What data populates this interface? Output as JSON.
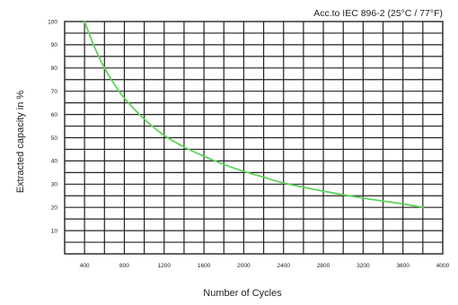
{
  "chart_data": {
    "type": "line",
    "title": "Acc.to IEC 896-2 (25°C / 77°F)",
    "xlabel": "Number of Cycles",
    "ylabel": "Extracted capacity in %",
    "xlim": [
      200,
      4000
    ],
    "ylim": [
      0,
      100
    ],
    "xticks": [
      400,
      800,
      1200,
      1600,
      2000,
      2400,
      2800,
      3200,
      3600,
      4000
    ],
    "xtick_labels": [
      "400",
      "800",
      "1200",
      "1600",
      "2000",
      "2400",
      "2800",
      "3200",
      "3600",
      "4000"
    ],
    "yticks": [
      10,
      20,
      30,
      40,
      50,
      60,
      70,
      80,
      90,
      100
    ],
    "ytick_labels": [
      "10",
      "20",
      "30",
      "40",
      "50",
      "60",
      "70",
      "80",
      "90",
      "100"
    ],
    "grid": true,
    "legend": "none",
    "colors": {
      "line": "#5fd35a",
      "grid": "#222222",
      "text": "#222222"
    },
    "series": [
      {
        "x": [
          400,
          500,
          600,
          700,
          800,
          1000,
          1200,
          1400,
          1600,
          1800,
          2000,
          2200,
          2400,
          2800,
          3200,
          3600,
          3800
        ],
        "y": [
          100,
          89,
          80,
          73,
          67,
          58,
          51,
          46,
          42,
          38.5,
          35.5,
          33,
          30.5,
          27,
          24,
          21.5,
          20
        ]
      }
    ]
  }
}
